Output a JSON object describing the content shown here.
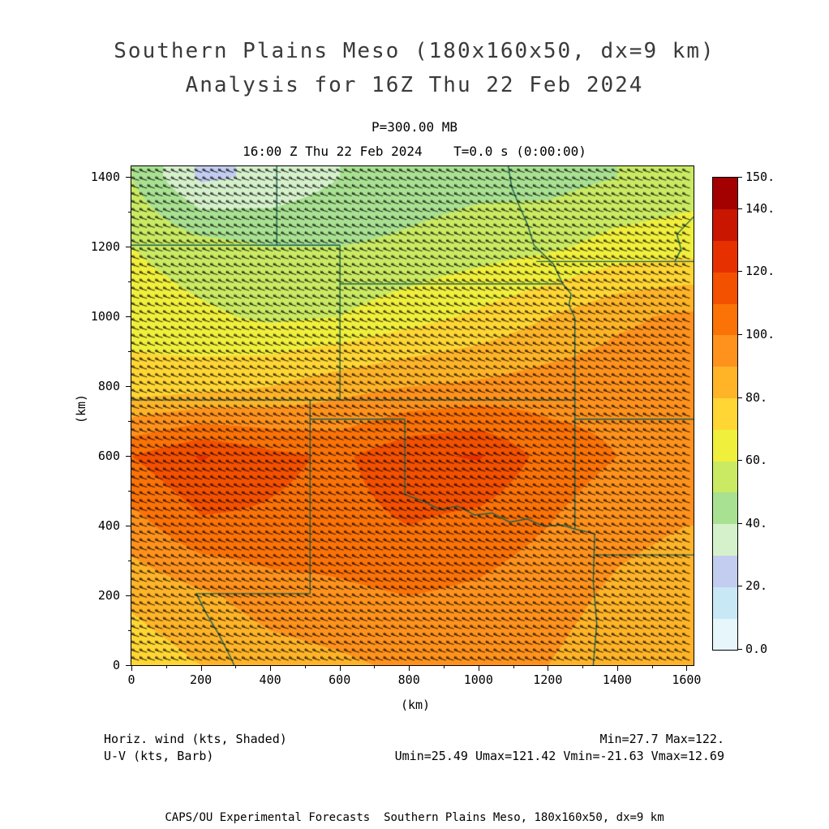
{
  "titles": {
    "line1": "Southern Plains Meso (180x160x50, dx=9 km)",
    "line2": "Analysis for 16Z Thu 22 Feb 2024",
    "pressure_level": "P=300.00 MB",
    "valid_time": "16:00 Z Thu 22 Feb 2024    T=0.0 s (0:00:00)"
  },
  "axes": {
    "xlabel": "(km)",
    "ylabel": "(km)",
    "x_ticks": [
      0,
      200,
      400,
      600,
      800,
      1000,
      1200,
      1400,
      1600
    ],
    "y_ticks": [
      0,
      200,
      400,
      600,
      800,
      1000,
      1200,
      1400
    ],
    "x_range_km": [
      0,
      1620
    ],
    "y_range_km": [
      0,
      1430
    ]
  },
  "colorbar": {
    "unit": "kts",
    "min_level": 0,
    "max_level": 150,
    "level_step": 10,
    "tick_values": [
      150,
      140,
      120,
      100,
      80,
      60,
      40,
      20,
      0
    ],
    "tick_labels": [
      "150.",
      "140.",
      "120.",
      "100.",
      "80.",
      "60.",
      "40.",
      "20.",
      "0.0"
    ],
    "colors": [
      "#e7f6fb",
      "#c9e8f5",
      "#c3cdf0",
      "#d5f1cb",
      "#a8e191",
      "#c9ea62",
      "#f0ef3c",
      "#ffd634",
      "#ffb428",
      "#ff921c",
      "#fb7207",
      "#f35000",
      "#e73000",
      "#c81600",
      "#a30000"
    ]
  },
  "annotations": {
    "shaded_label": "Horiz. wind (kts, Shaded)",
    "barb_label": "U-V (kts, Barb)",
    "minmax": "Min=27.7 Max=122.",
    "uv_minmax": "Umin=25.49 Umax=121.42 Vmin=-21.63 Vmax=12.69"
  },
  "footer": "CAPS/OU Experimental Forecasts  Southern Plains Meso, 180x160x50, dx=9 km",
  "chart_data": {
    "type": "heatmap",
    "title": "Southern Plains Meso (180x160x50, dx=9 km) Analysis for 16Z Thu 22 Feb 2024",
    "field": "Horizontal wind speed (kts, shaded) with U-V wind barbs at P=300.00 MB, T=0.0 s",
    "xlabel": "(km)",
    "ylabel": "(km)",
    "x_km": [
      0,
      200,
      400,
      600,
      800,
      1000,
      1200,
      1400,
      1600
    ],
    "y_km": [
      1400,
      1200,
      1000,
      800,
      600,
      400,
      200,
      0
    ],
    "wind_speed_kts": [
      [
        50,
        28,
        32,
        40,
        45,
        47,
        46,
        50,
        54
      ],
      [
        60,
        54,
        50,
        50,
        52,
        55,
        58,
        64,
        66
      ],
      [
        66,
        62,
        58,
        60,
        66,
        72,
        80,
        88,
        92
      ],
      [
        74,
        76,
        80,
        86,
        90,
        92,
        95,
        96,
        95
      ],
      [
        110,
        121,
        113,
        108,
        118,
        121,
        106,
        100,
        97
      ],
      [
        96,
        108,
        108,
        106,
        110,
        106,
        100,
        93,
        90
      ],
      [
        82,
        88,
        95,
        98,
        100,
        98,
        94,
        88,
        84
      ],
      [
        74,
        80,
        85,
        88,
        92,
        92,
        90,
        84,
        82
      ]
    ],
    "stats": {
      "min": 27.7,
      "max": 122,
      "umin": 25.49,
      "umax": 121.42,
      "vmin": -21.63,
      "vmax": 12.69
    },
    "wind_direction": "westerly to west-northwesterly; dense barbs with pennants (>=100 kt) over band of maxima",
    "state_border_color": "#1a6050",
    "state_borders_km": [
      [
        [
          0,
          1204
        ],
        [
          601,
          1204
        ]
      ],
      [
        [
          419,
          1204
        ],
        [
          419,
          1430
        ]
      ],
      [
        [
          601,
          760
        ],
        [
          601,
          1204
        ]
      ],
      [
        [
          601,
          1093
        ],
        [
          1243,
          1093
        ]
      ],
      [
        [
          0,
          760
        ],
        [
          1278,
          760
        ]
      ],
      [
        [
          1243,
          1093
        ],
        [
          1216,
          1150
        ],
        [
          1160,
          1204
        ],
        [
          1142,
          1262
        ],
        [
          1118,
          1316
        ],
        [
          1096,
          1370
        ],
        [
          1086,
          1430
        ]
      ],
      [
        [
          1278,
          390
        ],
        [
          1278,
          995
        ],
        [
          1261,
          1032
        ],
        [
          1267,
          1064
        ],
        [
          1243,
          1093
        ]
      ],
      [
        [
          1167,
          1157
        ],
        [
          1620,
          1157
        ]
      ],
      [
        [
          1620,
          1285
        ],
        [
          1572,
          1235
        ],
        [
          1584,
          1192
        ],
        [
          1566,
          1157
        ]
      ],
      [
        [
          515,
          705
        ],
        [
          788,
          705
        ]
      ],
      [
        [
          515,
          205
        ],
        [
          515,
          760
        ]
      ],
      [
        [
          788,
          489
        ],
        [
          788,
          705
        ]
      ],
      [
        [
          788,
          489
        ],
        [
          840,
          470
        ],
        [
          890,
          446
        ],
        [
          940,
          456
        ],
        [
          990,
          430
        ],
        [
          1040,
          436
        ],
        [
          1090,
          410
        ],
        [
          1140,
          419
        ],
        [
          1190,
          398
        ],
        [
          1240,
          402
        ],
        [
          1278,
          390
        ]
      ],
      [
        [
          1278,
          705
        ],
        [
          1620,
          705
        ]
      ],
      [
        [
          1278,
          390
        ],
        [
          1335,
          377
        ]
      ],
      [
        [
          1335,
          377
        ],
        [
          1331,
          240
        ],
        [
          1341,
          120
        ],
        [
          1331,
          0
        ]
      ],
      [
        [
          1333,
          316
        ],
        [
          1620,
          316
        ]
      ],
      [
        [
          187,
          205
        ],
        [
          515,
          205
        ]
      ],
      [
        [
          187,
          205
        ],
        [
          216,
          148
        ],
        [
          252,
          88
        ],
        [
          283,
          28
        ],
        [
          296,
          0
        ]
      ]
    ]
  }
}
